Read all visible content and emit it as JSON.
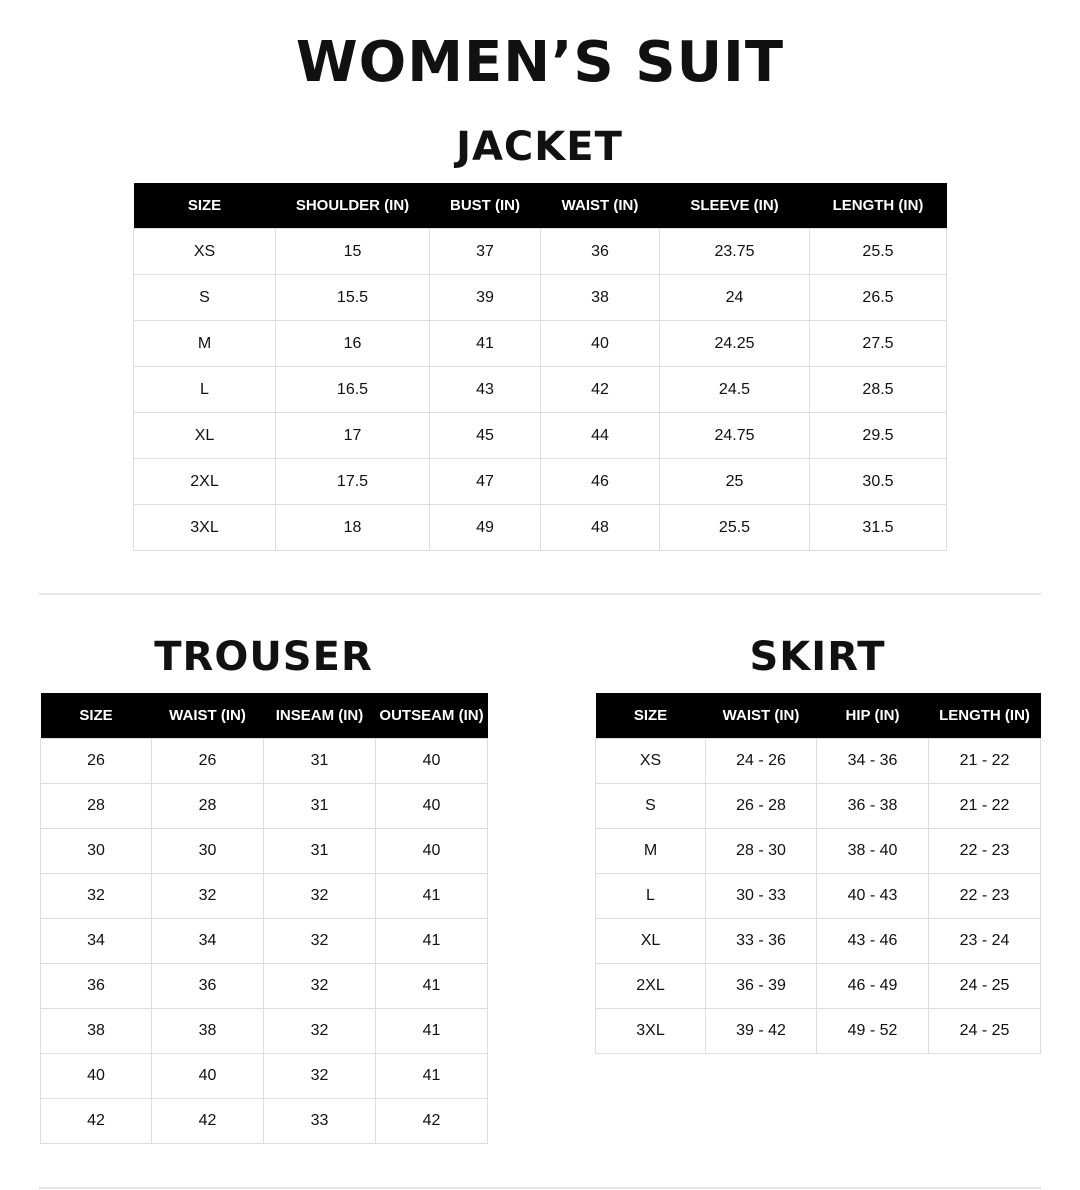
{
  "title": "WOMEN’S SUIT",
  "jacket": {
    "title": "JACKET",
    "headers": [
      "SIZE",
      "SHOULDER (IN)",
      "BUST (IN)",
      "WAIST (IN)",
      "SLEEVE (IN)",
      "LENGTH (IN)"
    ],
    "rows": [
      [
        "XS",
        "15",
        "37",
        "36",
        "23.75",
        "25.5"
      ],
      [
        "S",
        "15.5",
        "39",
        "38",
        "24",
        "26.5"
      ],
      [
        "M",
        "16",
        "41",
        "40",
        "24.25",
        "27.5"
      ],
      [
        "L",
        "16.5",
        "43",
        "42",
        "24.5",
        "28.5"
      ],
      [
        "XL",
        "17",
        "45",
        "44",
        "24.75",
        "29.5"
      ],
      [
        "2XL",
        "17.5",
        "47",
        "46",
        "25",
        "30.5"
      ],
      [
        "3XL",
        "18",
        "49",
        "48",
        "25.5",
        "31.5"
      ]
    ]
  },
  "trouser": {
    "title": "TROUSER",
    "headers": [
      "SIZE",
      "WAIST (IN)",
      "INSEAM (IN)",
      "OUTSEAM (IN)"
    ],
    "rows": [
      [
        "26",
        "26",
        "31",
        "40"
      ],
      [
        "28",
        "28",
        "31",
        "40"
      ],
      [
        "30",
        "30",
        "31",
        "40"
      ],
      [
        "32",
        "32",
        "32",
        "41"
      ],
      [
        "34",
        "34",
        "32",
        "41"
      ],
      [
        "36",
        "36",
        "32",
        "41"
      ],
      [
        "38",
        "38",
        "32",
        "41"
      ],
      [
        "40",
        "40",
        "32",
        "41"
      ],
      [
        "42",
        "42",
        "33",
        "42"
      ]
    ]
  },
  "skirt": {
    "title": "SKIRT",
    "headers": [
      "SIZE",
      "WAIST (IN)",
      "HIP (IN)",
      "LENGTH (IN)"
    ],
    "rows": [
      [
        "XS",
        "24 - 26",
        "34 - 36",
        "21 - 22"
      ],
      [
        "S",
        "26 - 28",
        "36 - 38",
        "21 - 22"
      ],
      [
        "M",
        "28 - 30",
        "38 - 40",
        "22 - 23"
      ],
      [
        "L",
        "30 - 33",
        "40 - 43",
        "22 - 23"
      ],
      [
        "XL",
        "33 - 36",
        "43 - 46",
        "23 - 24"
      ],
      [
        "2XL",
        "36 - 39",
        "46 - 49",
        "24 - 25"
      ],
      [
        "3XL",
        "39 - 42",
        "49 - 52",
        "24 - 25"
      ]
    ]
  }
}
